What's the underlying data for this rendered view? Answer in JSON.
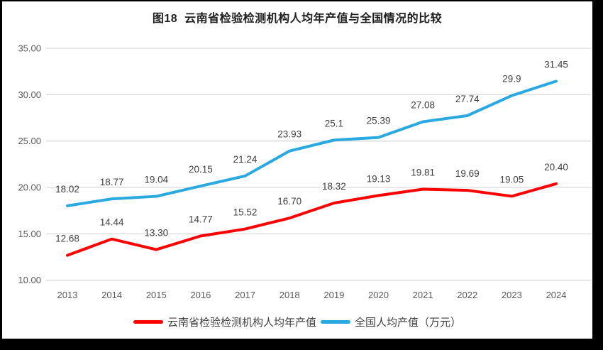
{
  "title": "图18  云南省检验检测机构人均年产值与全国情况的比较",
  "chart_data": {
    "type": "line",
    "title": "图18  云南省检验检测机构人均年产值与全国情况的比较",
    "x": [
      "2013",
      "2014",
      "2015",
      "2016",
      "2017",
      "2018",
      "2019",
      "2020",
      "2021",
      "2022",
      "2023",
      "2024"
    ],
    "series": [
      {
        "key": "yunnan",
        "name": "云南省检验检测机构人均年产值",
        "color": "#fe0000",
        "values": [
          12.68,
          14.44,
          13.3,
          14.77,
          15.52,
          16.7,
          18.32,
          19.13,
          19.81,
          19.69,
          19.05,
          20.4
        ],
        "labels": [
          "12.68",
          "14.44",
          "13.30",
          "14.77",
          "15.52",
          "16.70",
          "18.32",
          "19.13",
          "19.81",
          "19.69",
          "19.05",
          "20.40"
        ]
      },
      {
        "key": "national",
        "name": "全国人均产值（万元）",
        "color": "#29a9e0",
        "values": [
          18.02,
          18.77,
          19.04,
          20.15,
          21.24,
          23.93,
          25.1,
          25.39,
          27.08,
          27.74,
          29.9,
          31.45
        ],
        "labels": [
          "18.02",
          "18.77",
          "19.04",
          "20.15",
          "21.24",
          "23.93",
          "25.1",
          "25.39",
          "27.08",
          "27.74",
          "29.9",
          "31.45"
        ]
      }
    ],
    "ylim": [
      10,
      35
    ],
    "yticks": [
      "10.00",
      "15.00",
      "20.00",
      "25.00",
      "30.00",
      "35.00"
    ],
    "xlabel": "",
    "ylabel": "",
    "grid": true,
    "legend_position": "bottom"
  },
  "colors": {
    "grid": "#d9d9d9",
    "tick_text": "#595959",
    "data_label_text": "#404040",
    "title_text": "#1f1f1f",
    "frame": "#000000",
    "background": "#ffffff"
  }
}
